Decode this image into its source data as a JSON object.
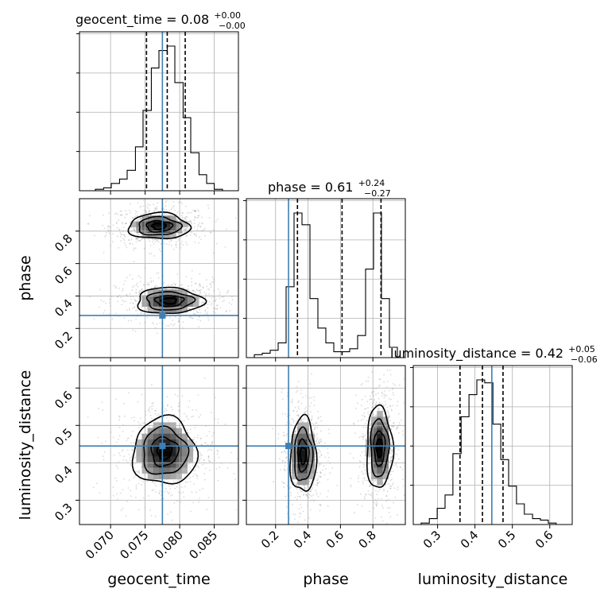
{
  "chart_data": {
    "type": "corner",
    "parameters": [
      "geocent_time",
      "phase",
      "luminosity_distance"
    ],
    "truths": {
      "geocent_time": 0.0775,
      "phase": 0.28,
      "luminosity_distance": 0.445
    },
    "truth_color": "#3f7fb3",
    "axes": {
      "geocent_time": {
        "lim": [
          0.0655,
          0.0885
        ],
        "ticks": [
          "0.070",
          "0.075",
          "0.080",
          "0.085"
        ],
        "tick_values": [
          0.07,
          0.075,
          0.08,
          0.085
        ]
      },
      "phase": {
        "lim": [
          0.02,
          1.0
        ],
        "ticks": [
          "0.2",
          "0.4",
          "0.6",
          "0.8"
        ],
        "tick_values": [
          0.2,
          0.4,
          0.6,
          0.8
        ]
      },
      "luminosity_distance": {
        "lim": [
          0.235,
          0.66
        ],
        "ticks": [
          "0.3",
          "0.4",
          "0.5",
          "0.6"
        ],
        "tick_values": [
          0.3,
          0.4,
          0.5,
          0.6
        ]
      }
    },
    "titles": {
      "geocent_time": {
        "main": "geocent_time = 0.08",
        "plus": "+0.00",
        "minus": "−0.00"
      },
      "phase": {
        "main": "phase = 0.61",
        "plus": "+0.24",
        "minus": "−0.27"
      },
      "luminosity_distance": {
        "main": "luminosity_distance = 0.42",
        "plus": "+0.05",
        "minus": "−0.06"
      }
    },
    "xlabels": [
      "geocent_time",
      "phase",
      "luminosity_distance"
    ],
    "ylabels": [
      "phase",
      "luminosity_distance"
    ],
    "quantiles": {
      "geocent_time": [
        0.0752,
        0.0782,
        0.0808
      ],
      "phase": [
        0.335,
        0.61,
        0.85
      ],
      "luminosity_distance": [
        0.36,
        0.42,
        0.475
      ]
    },
    "histograms": {
      "geocent_time": {
        "bin_edges": [
          0.0655,
          0.0667,
          0.0678,
          0.069,
          0.0701,
          0.0713,
          0.0724,
          0.0736,
          0.0747,
          0.0759,
          0.077,
          0.0782,
          0.0793,
          0.0805,
          0.0816,
          0.0828,
          0.0839,
          0.085,
          0.0862,
          0.0873,
          0.0885
        ],
        "counts": [
          0,
          0,
          0.01,
          0.02,
          0.05,
          0.08,
          0.14,
          0.3,
          0.55,
          0.84,
          0.96,
          0.99,
          0.74,
          0.5,
          0.26,
          0.11,
          0.05,
          0.01,
          0,
          0
        ]
      },
      "phase": {
        "bin_edges": [
          0.02,
          0.069,
          0.118,
          0.167,
          0.216,
          0.265,
          0.314,
          0.363,
          0.412,
          0.461,
          0.51,
          0.559,
          0.608,
          0.657,
          0.706,
          0.755,
          0.804,
          0.853,
          0.902,
          0.951,
          1.0
        ],
        "counts": [
          0,
          0.02,
          0.03,
          0.05,
          0.1,
          0.48,
          0.98,
          0.9,
          0.4,
          0.2,
          0.1,
          0.04,
          0.04,
          0.06,
          0.15,
          0.6,
          0.98,
          0.4,
          0.07,
          0
        ]
      },
      "luminosity_distance": {
        "bin_edges": [
          0.235,
          0.256,
          0.278,
          0.299,
          0.32,
          0.341,
          0.363,
          0.384,
          0.405,
          0.426,
          0.448,
          0.469,
          0.49,
          0.511,
          0.532,
          0.554,
          0.575,
          0.596,
          0.617,
          0.639,
          0.66
        ],
        "counts": [
          0,
          0.01,
          0.04,
          0.11,
          0.2,
          0.48,
          0.73,
          0.88,
          0.98,
          0.96,
          0.68,
          0.44,
          0.26,
          0.14,
          0.07,
          0.04,
          0.03,
          0.01,
          0,
          0
        ]
      }
    },
    "panels_2d": {
      "phase_vs_geocent_time": {
        "modes": [
          {
            "x": 0.077,
            "y": 0.83,
            "sx": 0.0022,
            "sy": 0.04
          },
          {
            "x": 0.0785,
            "y": 0.37,
            "sx": 0.0024,
            "sy": 0.04
          }
        ]
      },
      "luminosity_distance_vs_geocent_time": {
        "modes": [
          {
            "x": 0.0778,
            "y": 0.43,
            "sx": 0.0023,
            "sy": 0.045
          }
        ]
      },
      "luminosity_distance_vs_phase": {
        "modes": [
          {
            "x": 0.37,
            "y": 0.42,
            "sx": 0.04,
            "sy": 0.05
          },
          {
            "x": 0.84,
            "y": 0.44,
            "sx": 0.04,
            "sy": 0.055
          }
        ]
      }
    }
  }
}
